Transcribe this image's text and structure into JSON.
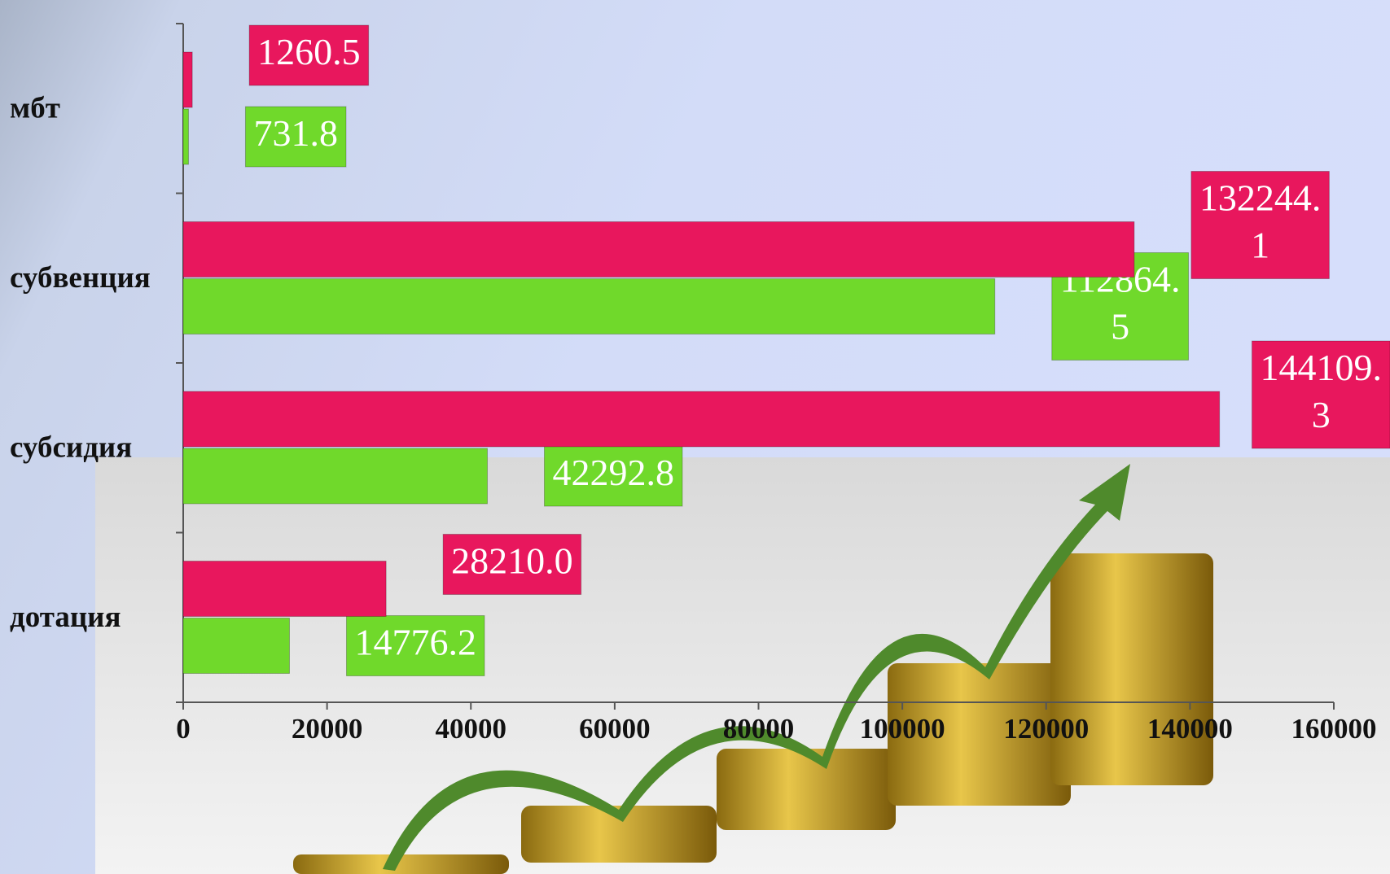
{
  "chart_data": {
    "type": "barh",
    "categories": [
      "мбт",
      "субвенция",
      "субсидия",
      "дотация"
    ],
    "series": [
      {
        "color": "#e8175d",
        "values": [
          1260.5,
          132244.1,
          144109.3,
          28210.0
        ],
        "value_labels": [
          "1260.5",
          "132244.1",
          "144109.3",
          "28210.0"
        ]
      },
      {
        "color": "#70d92b",
        "values": [
          731.8,
          112864.5,
          42292.8,
          14776.2
        ],
        "value_labels": [
          "731.8",
          "112864.5",
          "42292.8",
          "14776.2"
        ]
      }
    ],
    "xlim": [
      0,
      160000
    ],
    "xticks": [
      0,
      20000,
      40000,
      60000,
      80000,
      100000,
      120000,
      140000,
      160000
    ]
  }
}
